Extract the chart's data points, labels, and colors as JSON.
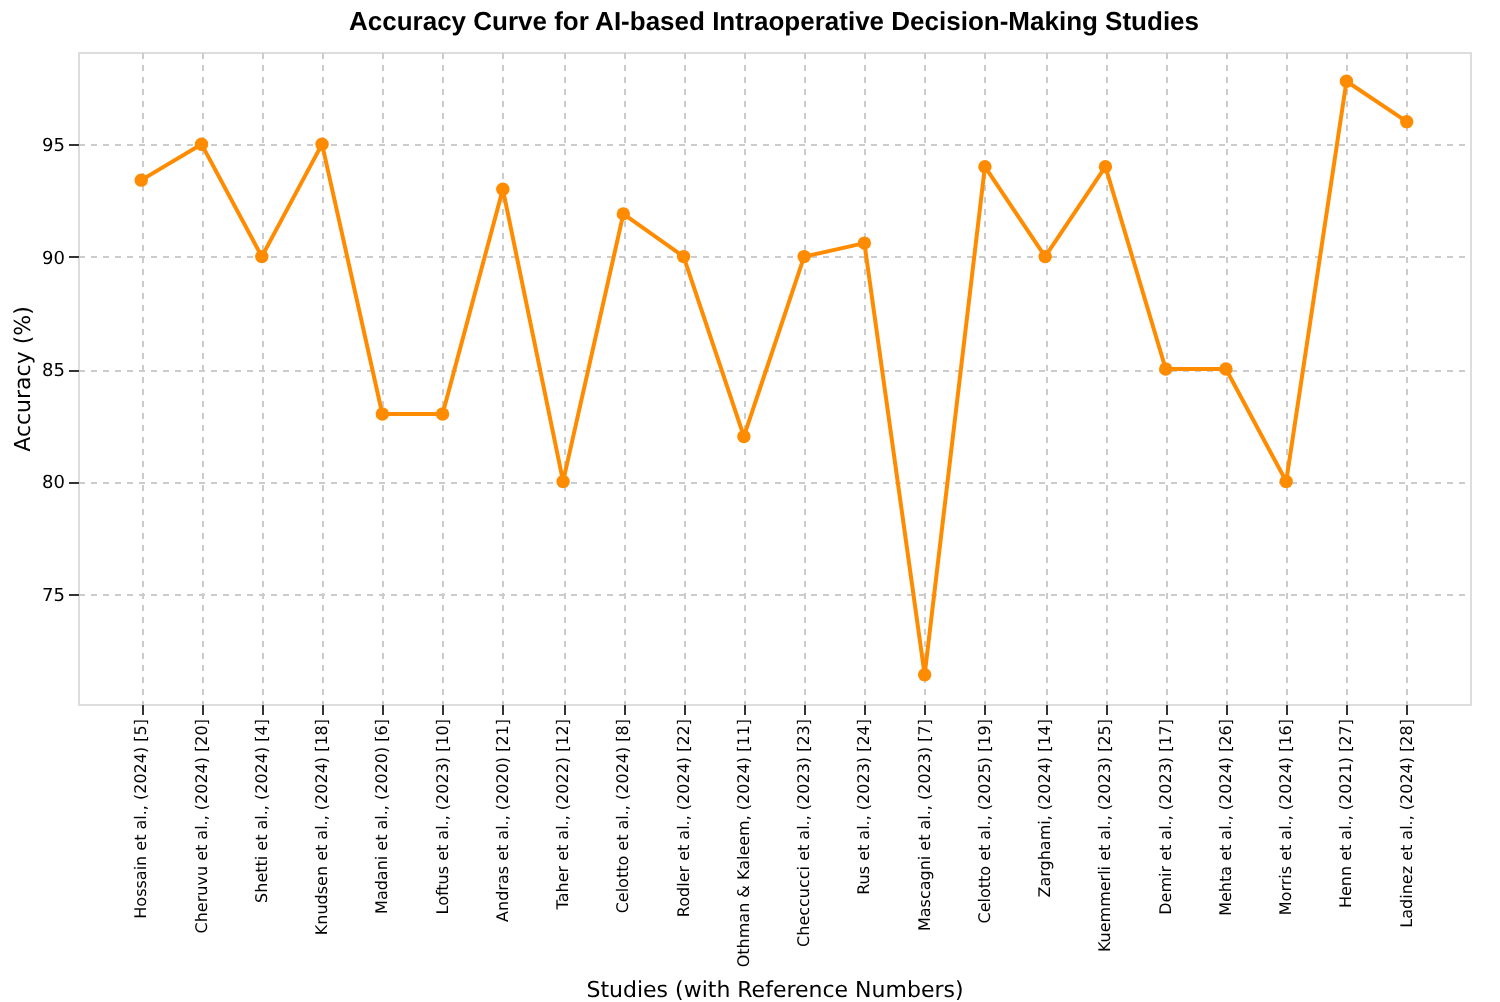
{
  "chart_data": {
    "type": "line",
    "title": "Accuracy Curve for AI-based Intraoperative Decision-Making Studies",
    "xlabel": "Studies (with Reference Numbers)",
    "ylabel": "Accuracy (%)",
    "categories": [
      "Hossain et al., (2024) [5]",
      "Cheruvu et al., (2024) [20]",
      "Shetti et al., (2024) [4]",
      "Knudsen et al., (2024) [18]",
      "Madani et al., (2020) [6]",
      "Loftus et al., (2023) [10]",
      "Andras et al., (2020) [21]",
      "Taher et al., (2022) [12]",
      "Celotto et al., (2024) [8]",
      "Rodler et al., (2024) [22]",
      "Othman & Kaleem, (2024) [11]",
      "Checcucci et al., (2023) [23]",
      "Rus et al., (2023) [24]",
      "Mascagni et al., (2023) [7]",
      "Celotto et al., (2025) [19]",
      "Zarghami, (2024) [14]",
      "Kuemmerli et al., (2023) [25]",
      "Demir et al., (2023) [17]",
      "Mehta et al., (2024) [26]",
      "Morris et al., (2024) [16]",
      "Henn et al., (2021) [27]",
      "Ladinez et al., (2024) [28]"
    ],
    "series": [
      {
        "color": "#ff8c00",
        "values": [
          93.4,
          95,
          90,
          95,
          83,
          83,
          93,
          80,
          91.9,
          90,
          82,
          90,
          90.6,
          71.4,
          94,
          90,
          94,
          85,
          85,
          80,
          97.8,
          96
        ]
      }
    ],
    "ylim": [
      70.1,
      99.1
    ],
    "yticks": [
      75,
      80,
      85,
      90,
      95
    ],
    "grid": true,
    "marker": "circle",
    "line_style": "solid"
  }
}
